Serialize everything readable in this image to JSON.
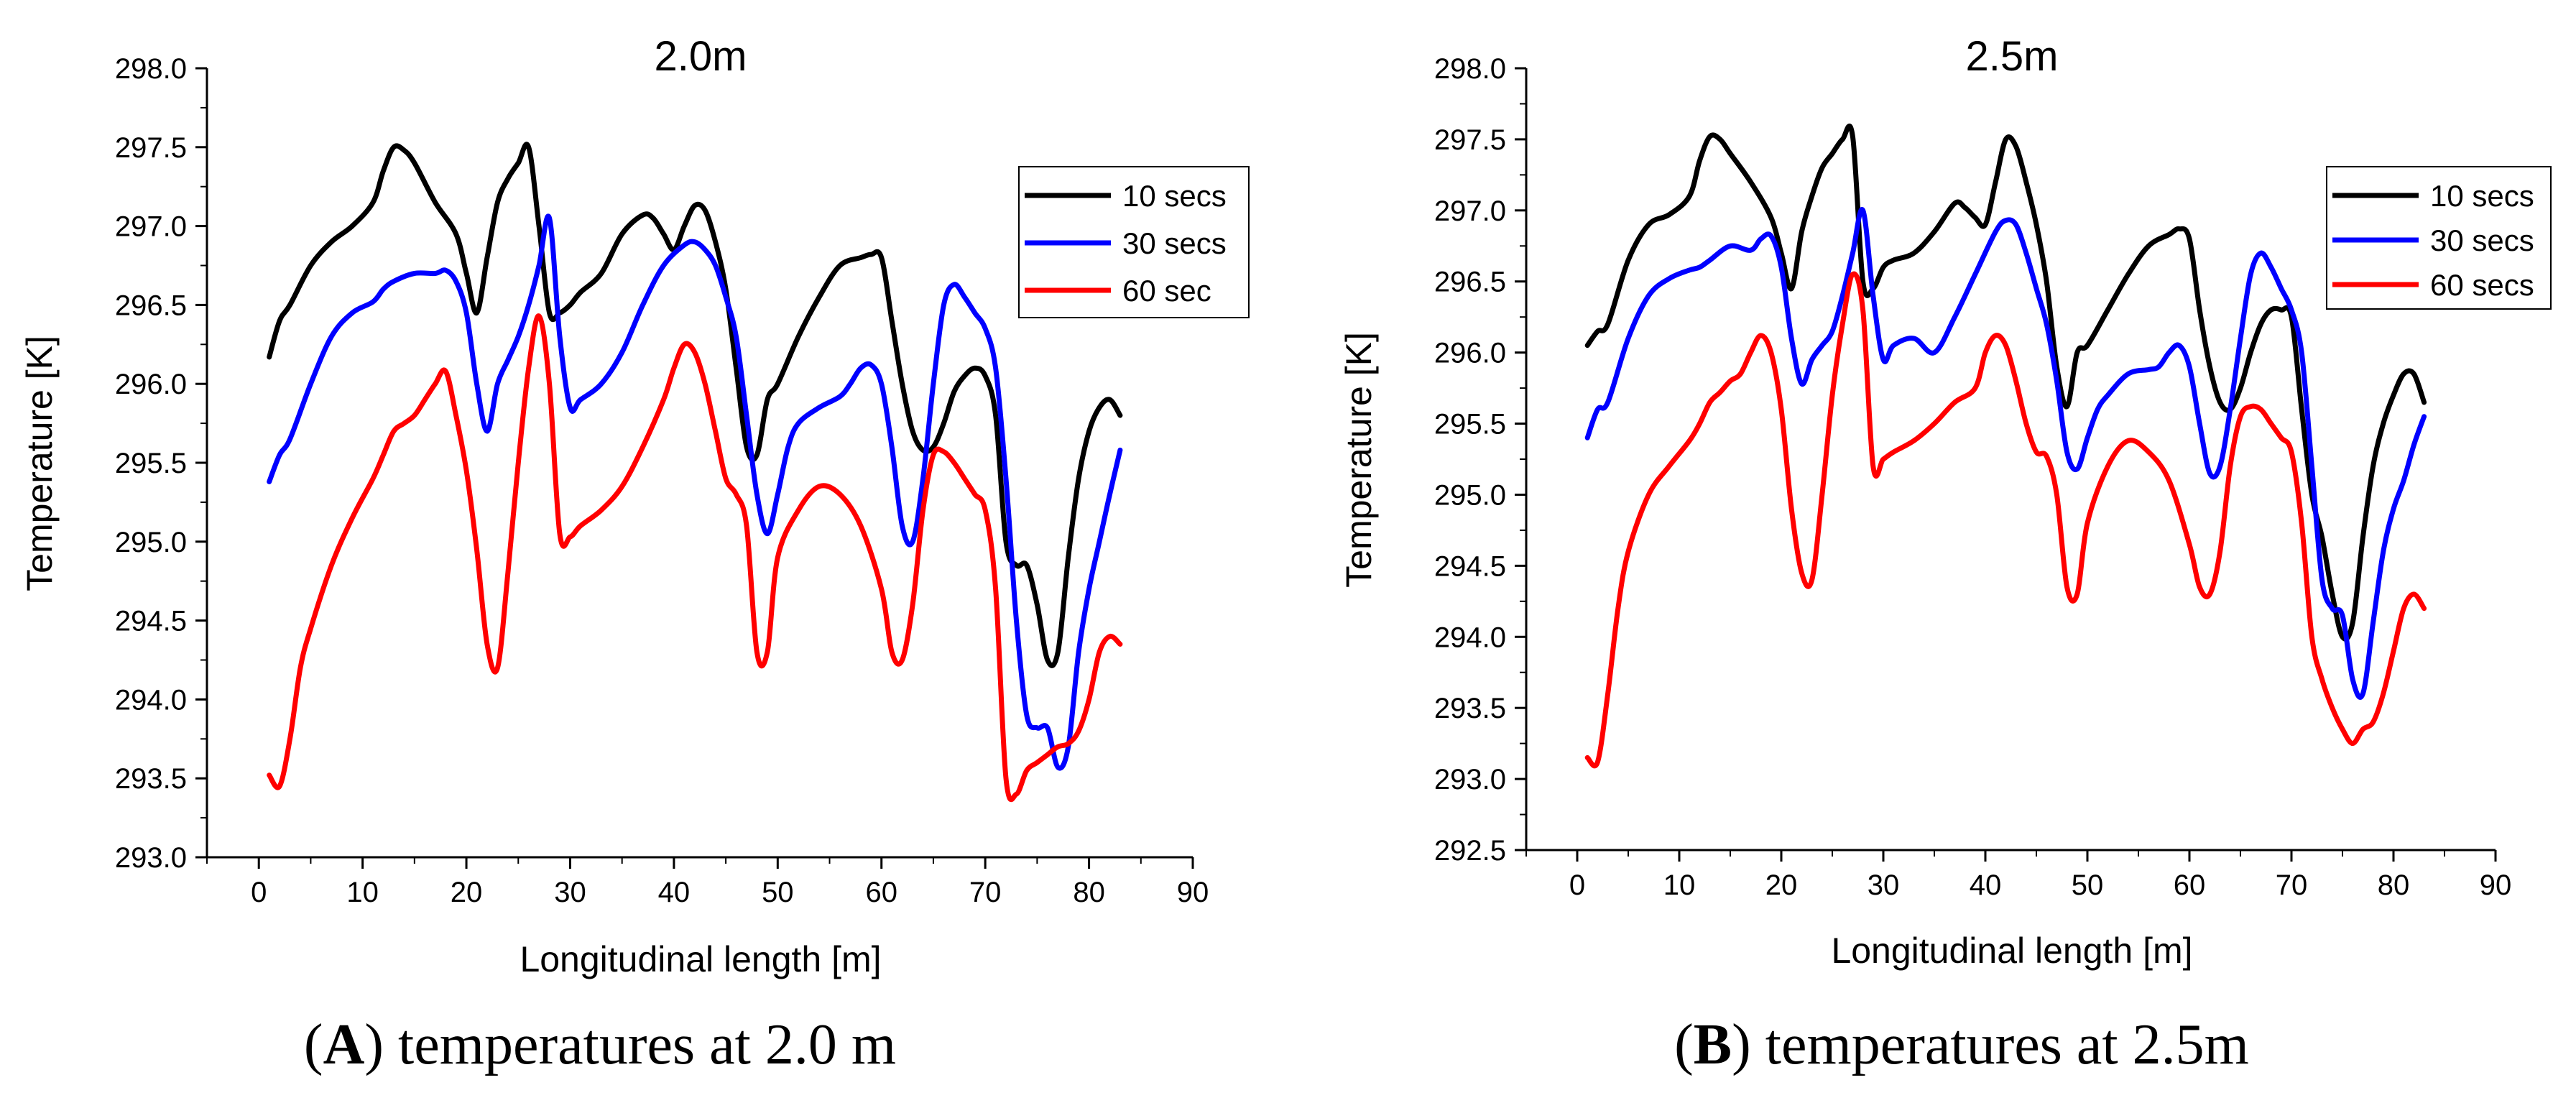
{
  "chart_data": [
    {
      "panel": "A",
      "type": "line",
      "title": "2.0m",
      "xlabel": "Longitudinal length [m]",
      "ylabel": "Temperature [K]",
      "xlim": [
        -5,
        90
      ],
      "ylim": [
        293.0,
        298.0
      ],
      "xticks": [
        0,
        10,
        20,
        30,
        40,
        50,
        60,
        70,
        80,
        90
      ],
      "yticks": [
        "293.0",
        "293.5",
        "294.0",
        "294.5",
        "295.0",
        "295.5",
        "296.0",
        "296.5",
        "297.0",
        "297.5",
        "298.0"
      ],
      "grid": false,
      "legend_position": "top-right",
      "caption": {
        "letter": "A",
        "text": ") temperatures at 2.0 m"
      },
      "series": [
        {
          "name": "10 secs",
          "color": "#000000",
          "x": [
            1,
            2,
            3,
            5,
            7,
            9,
            11,
            12,
            13,
            14,
            15,
            17,
            19,
            20,
            21,
            22,
            23,
            24,
            25,
            26,
            27,
            28,
            29,
            30,
            31,
            33,
            35,
            37,
            38,
            39,
            40,
            41,
            42,
            43,
            44,
            45,
            46,
            47,
            48,
            49,
            50,
            52,
            54,
            56,
            58,
            59,
            60,
            61,
            62,
            63,
            64,
            65,
            66,
            67,
            68,
            69,
            70,
            71,
            72,
            73,
            74,
            75,
            76,
            77,
            78,
            79,
            80,
            81,
            82,
            83
          ],
          "y": [
            296.17,
            296.4,
            296.5,
            296.75,
            296.9,
            297.0,
            297.15,
            297.35,
            297.5,
            297.48,
            297.4,
            297.15,
            296.95,
            296.7,
            296.45,
            296.8,
            297.15,
            297.3,
            297.4,
            297.5,
            297.0,
            296.45,
            296.45,
            296.5,
            296.58,
            296.7,
            296.95,
            297.07,
            297.05,
            296.95,
            296.85,
            297.0,
            297.13,
            297.1,
            296.9,
            296.6,
            296.1,
            295.6,
            295.55,
            295.9,
            296.0,
            296.3,
            296.55,
            296.75,
            296.8,
            296.82,
            296.8,
            296.4,
            296.0,
            295.7,
            295.58,
            295.6,
            295.75,
            295.95,
            296.05,
            296.1,
            296.05,
            295.8,
            295.0,
            294.85,
            294.85,
            294.6,
            294.25,
            294.3,
            294.9,
            295.4,
            295.7,
            295.85,
            295.9,
            295.8
          ]
        },
        {
          "name": "30 secs",
          "color": "#0000ff",
          "x": [
            1,
            2,
            3,
            5,
            7,
            9,
            11,
            12,
            13,
            15,
            17,
            18,
            19,
            20,
            21,
            22,
            23,
            24,
            25,
            26,
            27,
            28,
            29,
            30,
            31,
            33,
            35,
            37,
            39,
            41,
            42,
            43,
            44,
            45,
            46,
            47,
            48,
            49,
            50,
            51,
            52,
            54,
            56,
            57,
            58,
            59,
            60,
            61,
            62,
            63,
            64,
            65,
            66,
            67,
            68,
            69,
            70,
            71,
            72,
            73,
            74,
            75,
            76,
            77,
            78,
            79,
            80,
            81,
            82,
            83
          ],
          "y": [
            295.38,
            295.55,
            295.65,
            296.0,
            296.3,
            296.45,
            296.52,
            296.6,
            296.65,
            296.7,
            296.7,
            296.72,
            296.65,
            296.45,
            296.0,
            295.7,
            296.0,
            296.15,
            296.3,
            296.5,
            296.75,
            297.05,
            296.3,
            295.85,
            295.9,
            296.0,
            296.2,
            296.5,
            296.75,
            296.88,
            296.9,
            296.85,
            296.75,
            296.55,
            296.3,
            295.8,
            295.3,
            295.05,
            295.3,
            295.6,
            295.75,
            295.85,
            295.92,
            296.0,
            296.1,
            296.12,
            296.0,
            295.6,
            295.1,
            295.0,
            295.4,
            296.0,
            296.5,
            296.63,
            296.55,
            296.45,
            296.35,
            296.1,
            295.4,
            294.5,
            293.9,
            293.82,
            293.82,
            293.57,
            293.7,
            294.3,
            294.7,
            295.0,
            295.3,
            295.58
          ]
        },
        {
          "name": "60 sec",
          "color": "#ff0000",
          "x": [
            1,
            2,
            3,
            4,
            5,
            7,
            9,
            11,
            12,
            13,
            14,
            15,
            16,
            17,
            18,
            19,
            20,
            21,
            22,
            23,
            24,
            25,
            26,
            27,
            28,
            29,
            30,
            31,
            33,
            35,
            37,
            39,
            40,
            41,
            42,
            43,
            44,
            45,
            46,
            47,
            48,
            49,
            50,
            52,
            54,
            56,
            58,
            60,
            61,
            62,
            63,
            64,
            65,
            66,
            67,
            68,
            69,
            70,
            71,
            72,
            73,
            74,
            75,
            76,
            77,
            78,
            79,
            80,
            81,
            82,
            83
          ],
          "y": [
            293.52,
            293.45,
            293.75,
            294.2,
            294.45,
            294.85,
            295.15,
            295.4,
            295.55,
            295.7,
            295.75,
            295.8,
            295.9,
            296.0,
            296.08,
            295.8,
            295.45,
            294.95,
            294.35,
            294.2,
            294.8,
            295.5,
            296.1,
            296.43,
            296.0,
            295.05,
            295.03,
            295.1,
            295.2,
            295.35,
            295.6,
            295.9,
            296.1,
            296.25,
            296.2,
            296.0,
            295.7,
            295.4,
            295.3,
            295.1,
            294.3,
            294.3,
            294.9,
            295.2,
            295.35,
            295.3,
            295.1,
            294.7,
            294.3,
            294.25,
            294.6,
            295.2,
            295.55,
            295.57,
            295.5,
            295.4,
            295.3,
            295.2,
            294.7,
            293.5,
            293.4,
            293.55,
            293.6,
            293.65,
            293.7,
            293.72,
            293.8,
            294.0,
            294.3,
            294.4,
            294.35
          ]
        }
      ]
    },
    {
      "panel": "B",
      "type": "line",
      "title": "2.5m",
      "xlabel": "Longitudinal length [m]",
      "ylabel": "Temperature [K]",
      "xlim": [
        -5,
        90
      ],
      "ylim": [
        292.5,
        298.0
      ],
      "xticks": [
        0,
        10,
        20,
        30,
        40,
        50,
        60,
        70,
        80,
        90
      ],
      "yticks": [
        "292.5",
        "293.0",
        "293.5",
        "294.0",
        "294.5",
        "295.0",
        "295.5",
        "296.0",
        "296.5",
        "297.0",
        "297.5",
        "298.0"
      ],
      "grid": false,
      "legend_position": "top-right",
      "caption": {
        "letter": "B",
        "text": ") temperatures at 2.5m"
      },
      "series": [
        {
          "name": "10 secs",
          "color": "#000000",
          "x": [
            1,
            2,
            3,
            5,
            7,
            9,
            11,
            12,
            13,
            14,
            15,
            17,
            19,
            20,
            21,
            22,
            23,
            24,
            25,
            26,
            27,
            28,
            29,
            30,
            31,
            33,
            35,
            37,
            38,
            39,
            40,
            41,
            42,
            43,
            44,
            45,
            46,
            47,
            48,
            49,
            50,
            52,
            54,
            56,
            58,
            59,
            60,
            61,
            62,
            63,
            64,
            65,
            66,
            67,
            68,
            69,
            70,
            71,
            72,
            73,
            74,
            75,
            76,
            77,
            78,
            79,
            80,
            81,
            82,
            83
          ],
          "y": [
            296.05,
            296.15,
            296.2,
            296.65,
            296.9,
            296.97,
            297.1,
            297.35,
            297.52,
            297.5,
            297.4,
            297.2,
            296.95,
            296.7,
            296.45,
            296.85,
            297.1,
            297.3,
            297.4,
            297.5,
            297.52,
            296.5,
            296.45,
            296.6,
            296.65,
            296.7,
            296.85,
            297.05,
            297.02,
            296.95,
            296.9,
            297.2,
            297.5,
            297.45,
            297.2,
            296.9,
            296.5,
            295.9,
            295.62,
            296.0,
            296.05,
            296.3,
            296.55,
            296.75,
            296.83,
            296.87,
            296.8,
            296.3,
            295.9,
            295.65,
            295.6,
            295.75,
            296.0,
            296.2,
            296.3,
            296.3,
            296.25,
            295.6,
            295.0,
            294.7,
            294.3,
            294.0,
            294.1,
            294.7,
            295.2,
            295.5,
            295.7,
            295.85,
            295.85,
            295.65
          ]
        },
        {
          "name": "30 secs",
          "color": "#0000ff",
          "x": [
            1,
            2,
            3,
            5,
            7,
            9,
            11,
            12,
            13,
            15,
            17,
            18,
            19,
            20,
            21,
            22,
            23,
            24,
            25,
            26,
            27,
            28,
            29,
            30,
            31,
            33,
            35,
            37,
            39,
            41,
            42,
            43,
            44,
            45,
            46,
            47,
            48,
            49,
            50,
            51,
            52,
            54,
            56,
            57,
            58,
            59,
            60,
            61,
            62,
            63,
            64,
            65,
            66,
            67,
            68,
            69,
            70,
            71,
            72,
            73,
            74,
            75,
            76,
            77,
            78,
            79,
            80,
            81,
            82,
            83
          ],
          "y": [
            295.4,
            295.6,
            295.65,
            296.1,
            296.4,
            296.52,
            296.58,
            296.6,
            296.65,
            296.75,
            296.72,
            296.8,
            296.82,
            296.6,
            296.1,
            295.78,
            295.95,
            296.05,
            296.15,
            296.4,
            296.7,
            297.0,
            296.4,
            295.95,
            296.05,
            296.1,
            296.0,
            296.25,
            296.55,
            296.85,
            296.93,
            296.9,
            296.7,
            296.45,
            296.2,
            295.8,
            295.3,
            295.18,
            295.4,
            295.6,
            295.7,
            295.85,
            295.88,
            295.9,
            296.0,
            296.05,
            295.9,
            295.5,
            295.15,
            295.2,
            295.6,
            296.1,
            296.55,
            296.7,
            296.6,
            296.45,
            296.3,
            296.0,
            295.2,
            294.4,
            294.2,
            294.15,
            293.7,
            293.6,
            294.1,
            294.6,
            294.9,
            295.1,
            295.35,
            295.55
          ]
        },
        {
          "name": "60 secs",
          "color": "#ff0000",
          "x": [
            1,
            2,
            3,
            4,
            5,
            7,
            9,
            11,
            12,
            13,
            14,
            15,
            16,
            17,
            18,
            19,
            20,
            21,
            22,
            23,
            24,
            25,
            26,
            27,
            28,
            29,
            30,
            31,
            33,
            35,
            37,
            39,
            40,
            41,
            42,
            43,
            44,
            45,
            46,
            47,
            48,
            49,
            50,
            52,
            54,
            56,
            58,
            60,
            61,
            62,
            63,
            64,
            65,
            66,
            67,
            68,
            69,
            70,
            71,
            72,
            73,
            74,
            75,
            76,
            77,
            78,
            79,
            80,
            81,
            82,
            83
          ],
          "y": [
            293.15,
            293.12,
            293.6,
            294.2,
            294.6,
            295.0,
            295.2,
            295.38,
            295.5,
            295.65,
            295.72,
            295.8,
            295.85,
            296.0,
            296.12,
            296.0,
            295.6,
            294.9,
            294.45,
            294.4,
            295.0,
            295.7,
            296.2,
            296.55,
            296.3,
            295.2,
            295.25,
            295.3,
            295.38,
            295.5,
            295.65,
            295.75,
            296.0,
            296.12,
            296.05,
            295.8,
            295.5,
            295.3,
            295.27,
            295.0,
            294.35,
            294.3,
            294.8,
            295.2,
            295.38,
            295.3,
            295.1,
            294.65,
            294.35,
            294.3,
            294.6,
            295.2,
            295.55,
            295.62,
            295.6,
            295.5,
            295.4,
            295.3,
            294.8,
            294.0,
            293.7,
            293.5,
            293.35,
            293.25,
            293.35,
            293.4,
            293.6,
            293.9,
            294.2,
            294.3,
            294.2
          ]
        }
      ]
    }
  ]
}
